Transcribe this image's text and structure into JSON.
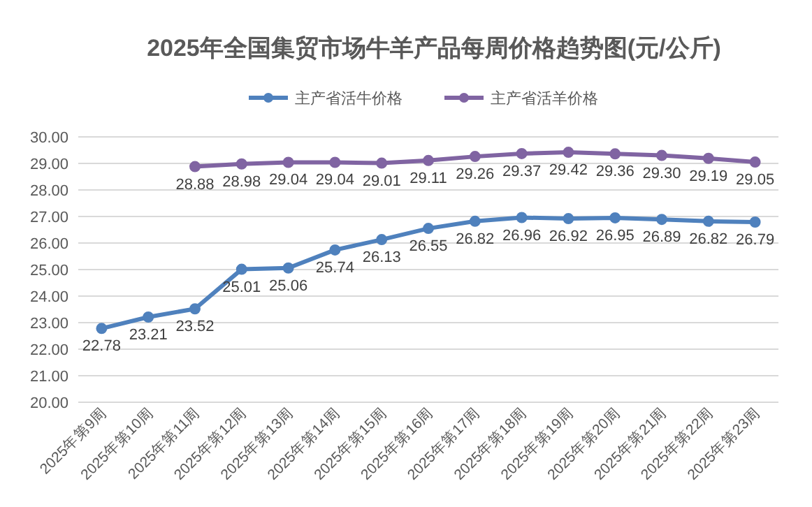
{
  "chart_data": {
    "type": "line",
    "title": "2025年全国集贸市场牛羊产品每周价格趋势图(元/公斤)",
    "categories": [
      "2025年第9周",
      "2025年第10周",
      "2025年第11周",
      "2025年第12周",
      "2025年第13周",
      "2025年第14周",
      "2025年第15周",
      "2025年第16周",
      "2025年第17周",
      "2025年第18周",
      "2025年第19周",
      "2025年第20周",
      "2025年第21周",
      "2025年第22周",
      "2025年第23周"
    ],
    "series": [
      {
        "name": "主产省活牛价格",
        "color": "#4f81bd",
        "values": [
          22.78,
          23.21,
          23.52,
          25.01,
          25.06,
          25.74,
          26.13,
          26.55,
          26.82,
          26.96,
          26.92,
          26.95,
          26.89,
          26.82,
          26.79
        ],
        "value_labels": [
          "22.78",
          "23.21",
          "23.52",
          "25.01",
          "25.06",
          "25.74",
          "26.13",
          "26.55",
          "26.82",
          "26.96",
          "26.92",
          "26.95",
          "26.89",
          "26.82",
          "26.79"
        ]
      },
      {
        "name": "主产省活羊价格",
        "color": "#8064a2",
        "values": [
          null,
          null,
          28.88,
          28.98,
          29.04,
          29.04,
          29.01,
          29.11,
          29.26,
          29.37,
          29.42,
          29.36,
          29.3,
          29.19,
          29.05
        ],
        "value_labels": [
          null,
          null,
          "28.88",
          "28.98",
          "29.04",
          "29.04",
          "29.01",
          "29.11",
          "29.26",
          "29.37",
          "29.42",
          "29.36",
          "29.30",
          "29.19",
          "29.05"
        ]
      }
    ],
    "ylim": [
      20,
      30
    ],
    "yticks": [
      {
        "value": 20,
        "label": "20.00"
      },
      {
        "value": 21,
        "label": "21.00"
      },
      {
        "value": 22,
        "label": "22.00"
      },
      {
        "value": 23,
        "label": "23.00"
      },
      {
        "value": 24,
        "label": "24.00"
      },
      {
        "value": 25,
        "label": "25.00"
      },
      {
        "value": 26,
        "label": "26.00"
      },
      {
        "value": 27,
        "label": "27.00"
      },
      {
        "value": 28,
        "label": "28.00"
      },
      {
        "value": 29,
        "label": "29.00"
      },
      {
        "value": 30,
        "label": "30.00"
      }
    ],
    "grid": "y",
    "legend": "top",
    "marker": "circle",
    "line_style": "solid"
  }
}
